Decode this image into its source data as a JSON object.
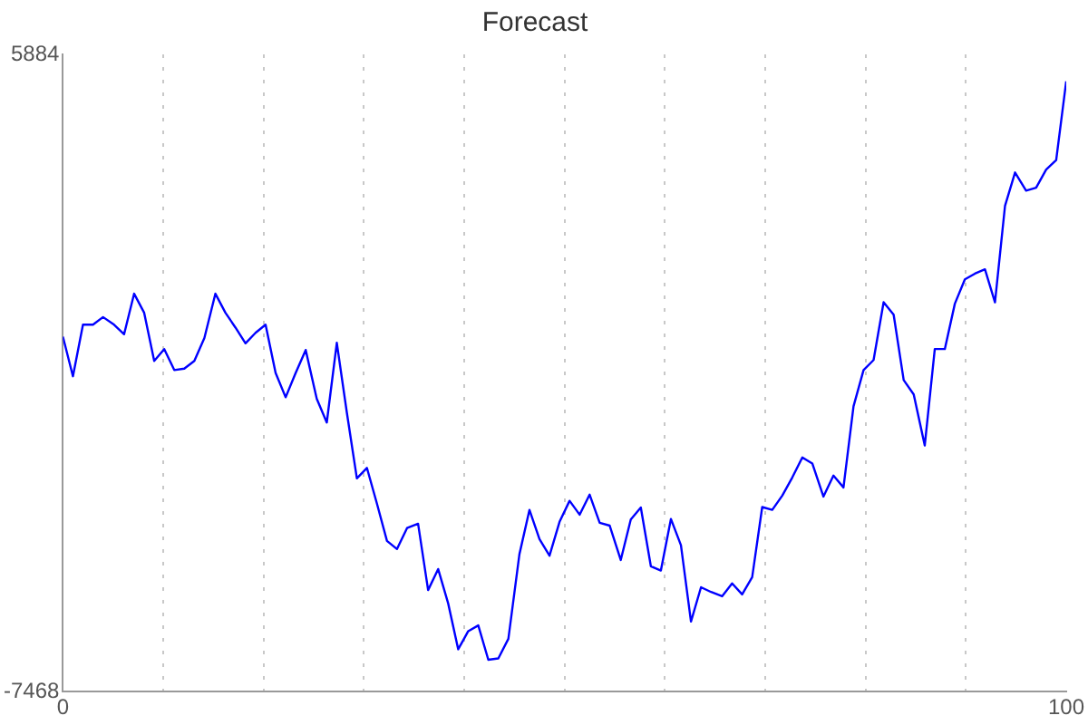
{
  "chart_data": {
    "type": "line",
    "title": "Forecast",
    "x": [
      0,
      1,
      2,
      3,
      4,
      5.1,
      6.1,
      7.1,
      8.1,
      9.1,
      10.1,
      11.1,
      12.1,
      13.1,
      14.1,
      15.2,
      16.2,
      17.2,
      18.2,
      19.2,
      20.2,
      21.2,
      22.2,
      23.2,
      24.2,
      25.3,
      26.3,
      27.3,
      28.3,
      29.3,
      30.3,
      31.3,
      32.3,
      33.3,
      34.3,
      35.4,
      36.4,
      37.4,
      38.4,
      39.4,
      40.4,
      41.4,
      42.4,
      43.4,
      44.4,
      45.5,
      46.5,
      47.5,
      48.5,
      49.5,
      50.5,
      51.5,
      52.5,
      53.5,
      54.5,
      55.6,
      56.6,
      57.6,
      58.6,
      59.6,
      60.6,
      61.6,
      62.6,
      63.6,
      64.6,
      65.7,
      66.7,
      67.7,
      68.7,
      69.7,
      70.7,
      71.7,
      72.7,
      73.7,
      74.7,
      75.8,
      76.8,
      77.8,
      78.8,
      79.8,
      80.8,
      81.8,
      82.8,
      83.8,
      84.8,
      85.9,
      86.9,
      87.9,
      88.9,
      89.9,
      90.9,
      91.9,
      92.9,
      93.9,
      94.9,
      96,
      97,
      98,
      99,
      100
    ],
    "series": [
      {
        "color": "#0000ff",
        "values": [
          -30,
          -860,
          220,
          220,
          380,
          220,
          20,
          870,
          470,
          -540,
          -290,
          -730,
          -700,
          -540,
          -60,
          870,
          470,
          160,
          -170,
          50,
          220,
          -790,
          -1300,
          -790,
          -310,
          -1330,
          -1830,
          -160,
          -1620,
          -3000,
          -2780,
          -3530,
          -4310,
          -4480,
          -4040,
          -3950,
          -5340,
          -4900,
          -5620,
          -6580,
          -6200,
          -6080,
          -6800,
          -6770,
          -6360,
          -4590,
          -3660,
          -4270,
          -4620,
          -3910,
          -3470,
          -3760,
          -3340,
          -3930,
          -3990,
          -4710,
          -3860,
          -3610,
          -4840,
          -4930,
          -3850,
          -4400,
          -6000,
          -5280,
          -5380,
          -5470,
          -5200,
          -5430,
          -5070,
          -3600,
          -3660,
          -3360,
          -2980,
          -2560,
          -2690,
          -3380,
          -2940,
          -3190,
          -1490,
          -730,
          -520,
          690,
          430,
          -940,
          -1240,
          -2310,
          -290,
          -290,
          660,
          1170,
          1290,
          1380,
          690,
          2710,
          3410,
          3030,
          3090,
          3470,
          3670,
          5320
        ]
      }
    ],
    "xlim": [
      0,
      100
    ],
    "xticks": [
      0,
      {
        "value": 10,
        "label": null
      },
      {
        "value": 20,
        "label": null
      },
      {
        "value": 30,
        "label": null
      },
      {
        "value": 40,
        "label": null
      },
      {
        "value": 50,
        "label": null
      },
      {
        "value": 60,
        "label": null
      },
      {
        "value": 70,
        "label": null
      },
      {
        "value": 80,
        "label": null
      },
      {
        "value": 90,
        "label": null
      },
      100
    ],
    "ylim": [
      -7468,
      5884
    ],
    "yticks": [
      -7468,
      5884
    ],
    "grid": "x",
    "marker": "none",
    "line_style": "solid"
  }
}
